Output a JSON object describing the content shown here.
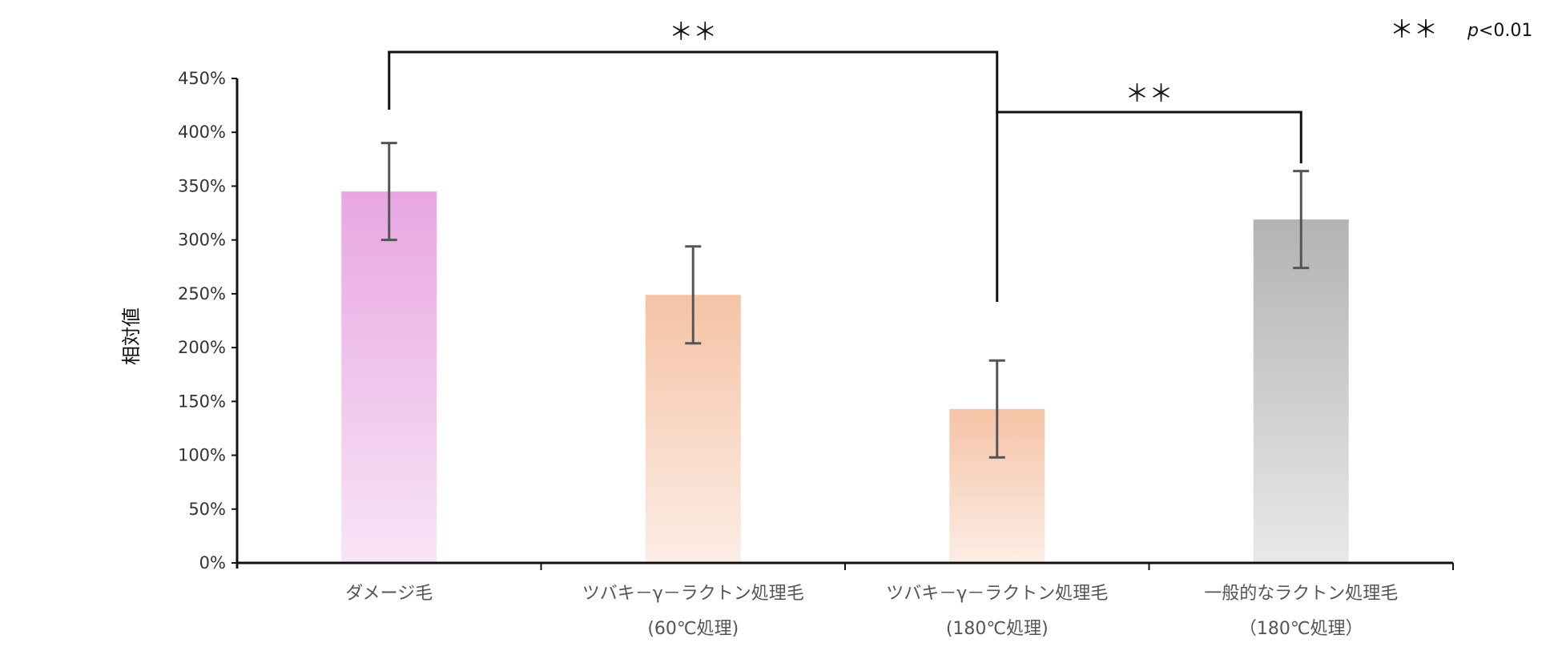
{
  "chart_data": {
    "type": "bar",
    "ylabel": "相対値",
    "ylim": [
      0,
      4.5
    ],
    "yticks": [
      "0%",
      "50%",
      "100%",
      "150%",
      "200%",
      "250%",
      "300%",
      "350%",
      "400%",
      "450%"
    ],
    "categories": [
      {
        "line1": "ダメージ毛",
        "line2": ""
      },
      {
        "line1": "ツバキ－γ－ラクトン処理毛",
        "line2": "(60℃処理)"
      },
      {
        "line1": "ツバキ－γ－ラクトン処理毛",
        "line2": "(180℃処理)"
      },
      {
        "line1": "一般的なラクトン処理毛",
        "line2": "（180℃処理）"
      }
    ],
    "values": [
      3.45,
      2.49,
      1.43,
      3.19
    ],
    "errors": [
      0.45,
      0.45,
      0.45,
      0.45
    ],
    "bar_colors": [
      "#e8a6e2",
      "#f5c3a6",
      "#f5c3a6",
      "#b3b3b3"
    ],
    "significance": [
      {
        "from": 0,
        "to": 2,
        "label": "＊＊"
      },
      {
        "from": 2,
        "to": 3,
        "label": "＊＊"
      }
    ],
    "legend": {
      "symbol": "＊＊",
      "text": "p<0.01",
      "p_letter": "p",
      "p_rest": "<0.01"
    }
  }
}
